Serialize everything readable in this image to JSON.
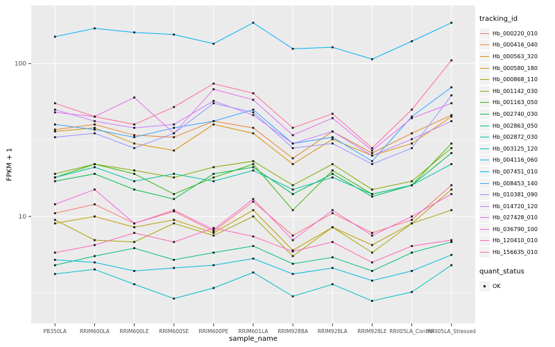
{
  "chart_data": {
    "type": "line",
    "title": "",
    "xlabel": "sample_name",
    "ylabel": "FPKM + 1",
    "y_scale": "log10",
    "y_ticks": [
      10,
      100
    ],
    "y_minor_ticks": [
      3.162,
      31.62,
      316.2
    ],
    "ylog_domain": [
      0.3,
      2.38
    ],
    "grid": true,
    "legend_position": "right",
    "colors": {
      "panel_bg": "#EBEBEB",
      "grid": "#FFFFFF",
      "point": "#1A1A1A",
      "axis_text": "#4D4D4D",
      "tick": "#333333"
    },
    "categories": [
      "PB350LA",
      "RRIM600LA",
      "RRIM600LE",
      "RRIM600SE",
      "RRIM600PE",
      "RRIM601LA",
      "RRIM928BA",
      "RRIM928LA",
      "RRIM928LE",
      "RRII05LA_Control",
      "RRII05LA_Stressed"
    ],
    "series": [
      {
        "name": "Hb_000220_010",
        "color": "#F8766D",
        "values": [
          10.5,
          12,
          9,
          10.8,
          8,
          12.5,
          7.5,
          10.5,
          7.8,
          9.5,
          16
        ]
      },
      {
        "name": "Hb_000416_040",
        "color": "#EA8331",
        "values": [
          37,
          40,
          34,
          33,
          42,
          38,
          24,
          36,
          26,
          35,
          46
        ]
      },
      {
        "name": "Hb_000563_320",
        "color": "#D89000",
        "values": [
          36,
          38,
          30,
          27,
          40,
          35,
          22,
          32,
          25,
          30,
          45
        ]
      },
      {
        "name": "Hb_000580_180",
        "color": "#C09B00",
        "values": [
          9,
          10,
          8.5,
          9.5,
          7.8,
          11,
          6,
          8.5,
          6.5,
          9,
          15
        ]
      },
      {
        "name": "Hb_000868_110",
        "color": "#A3A500",
        "values": [
          9.5,
          7,
          6.8,
          9,
          7.5,
          10,
          5.5,
          8.5,
          5.8,
          9,
          11
        ]
      },
      {
        "name": "Hb_001142_030",
        "color": "#7CAE00",
        "values": [
          19,
          22,
          20,
          18,
          21,
          23,
          16,
          22,
          15,
          17,
          28
        ]
      },
      {
        "name": "Hb_001163_050",
        "color": "#39B600",
        "values": [
          18,
          22,
          19,
          14,
          18,
          22,
          11,
          20,
          14,
          16,
          30
        ]
      },
      {
        "name": "Hb_002740_030",
        "color": "#00BB4E",
        "values": [
          17,
          19,
          15,
          13,
          19,
          21,
          14,
          19,
          13.5,
          16,
          26
        ]
      },
      {
        "name": "Hb_002863_050",
        "color": "#00BF7D",
        "values": [
          4.8,
          5.5,
          6.2,
          5.2,
          5.8,
          6.4,
          4.9,
          5.4,
          4.4,
          5.8,
          6.8
        ]
      },
      {
        "name": "Hb_002872_030",
        "color": "#00C1A3",
        "values": [
          18,
          21,
          17,
          19,
          17,
          20,
          15,
          18,
          14,
          16,
          22
        ]
      },
      {
        "name": "Hb_003125_120",
        "color": "#00BFC4",
        "values": [
          4.2,
          4.5,
          3.6,
          2.9,
          3.4,
          4.3,
          3.0,
          3.6,
          2.8,
          3.2,
          4.8
        ]
      },
      {
        "name": "Hb_004116_060",
        "color": "#00BAE0",
        "values": [
          5.2,
          5.0,
          4.4,
          4.6,
          4.8,
          5.3,
          4.2,
          4.6,
          3.8,
          4.4,
          5.6
        ]
      },
      {
        "name": "Hb_007451_010",
        "color": "#00B0F6",
        "values": [
          150,
          170,
          160,
          155,
          135,
          185,
          125,
          128,
          107,
          140,
          185
        ]
      },
      {
        "name": "Hb_008453_140",
        "color": "#35A2FF",
        "values": [
          40,
          37,
          33,
          38,
          42,
          50,
          30,
          33,
          23,
          45,
          70
        ]
      },
      {
        "name": "Hb_010381_090",
        "color": "#9590FF",
        "values": [
          33,
          35,
          28,
          35,
          55,
          48,
          28,
          30,
          22,
          28,
          62
        ]
      },
      {
        "name": "Hb_014720_120",
        "color": "#C77CFF",
        "values": [
          50,
          42,
          38,
          40,
          57,
          46,
          30,
          36,
          25,
          32,
          42
        ]
      },
      {
        "name": "Hb_027428_010",
        "color": "#E76BF3",
        "values": [
          48,
          45,
          60,
          35,
          68,
          58,
          34,
          44,
          27,
          44,
          55
        ]
      },
      {
        "name": "Hb_036790_100",
        "color": "#FA62DB",
        "values": [
          12,
          15,
          9,
          11,
          8.2,
          13,
          7,
          11,
          7.5,
          10,
          14
        ]
      },
      {
        "name": "Hb_120410_010",
        "color": "#FF62BC",
        "values": [
          5.8,
          6.5,
          7.8,
          6.8,
          8.4,
          7.4,
          5.9,
          6.8,
          5.0,
          6.4,
          7.0
        ]
      },
      {
        "name": "Hb_156635_010",
        "color": "#FF6A98",
        "values": [
          55,
          45,
          40,
          52,
          74,
          64,
          38,
          47,
          28,
          50,
          105
        ]
      }
    ],
    "legend": {
      "color_title": "tracking_id",
      "shape_title": "quant_status",
      "shape_items": [
        {
          "label": "OK"
        }
      ]
    }
  }
}
